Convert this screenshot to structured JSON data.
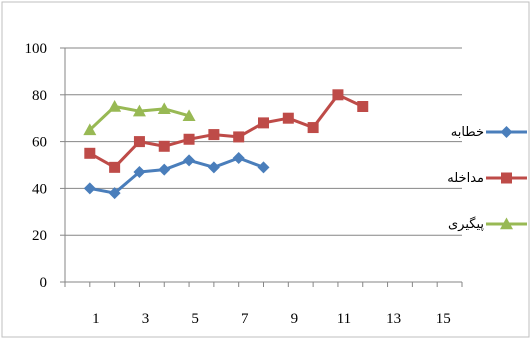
{
  "chart_data": {
    "type": "line",
    "title": "",
    "xlabel": "",
    "ylabel": "",
    "ylim": [
      0,
      100
    ],
    "xlim": [
      0,
      16
    ],
    "x_ticks": [
      "1",
      "3",
      "5",
      "7",
      "9",
      "11",
      "13",
      "15"
    ],
    "y_ticks": [
      "0",
      "20",
      "40",
      "60",
      "80",
      "100"
    ],
    "grid": true,
    "legend_position": "right",
    "series": [
      {
        "name": "خطابه",
        "color": "#4a7ebb",
        "marker": "diamond",
        "x": [
          1,
          2,
          3,
          4,
          5,
          6,
          7,
          8
        ],
        "values": [
          40,
          38,
          47,
          48,
          52,
          49,
          53,
          49
        ]
      },
      {
        "name": "مداخله",
        "color": "#be4b48",
        "marker": "square",
        "x": [
          1,
          2,
          3,
          4,
          5,
          6,
          7,
          8,
          9,
          10,
          11,
          12
        ],
        "values": [
          55,
          49,
          60,
          58,
          61,
          63,
          62,
          68,
          70,
          66,
          80,
          75
        ]
      },
      {
        "name": "پیگیری",
        "color": "#98b954",
        "marker": "triangle",
        "x": [
          1,
          2,
          3,
          4,
          5
        ],
        "values": [
          65,
          75,
          73,
          74,
          71
        ]
      }
    ]
  }
}
